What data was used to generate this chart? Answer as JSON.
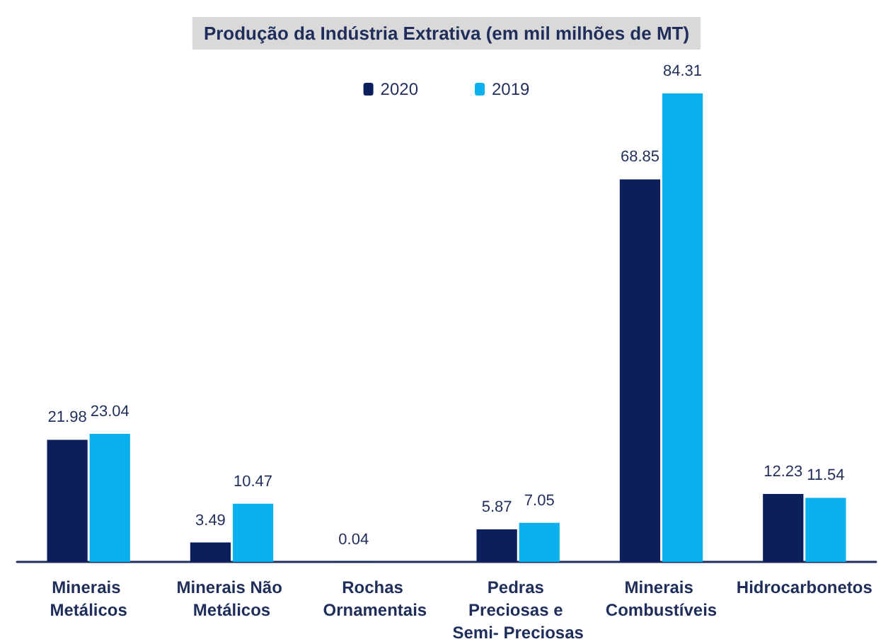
{
  "chart_data": {
    "type": "bar",
    "title": "Produção da Indústria Extrativa (em mil milhões de MT)",
    "categories": [
      "Minerais Metálicos",
      "Minerais Não Metálicos",
      "Rochas Ornamentais",
      "Pedras Preciosas e Semi- Preciosas",
      "Minerais Combustíveis",
      "Hidrocarbonetos"
    ],
    "series": [
      {
        "name": "2020",
        "color": "#0b1f5c",
        "values": [
          21.98,
          3.49,
          0.04,
          5.87,
          68.85,
          12.23
        ]
      },
      {
        "name": "2019",
        "color": "#0ab0ee",
        "values": [
          23.04,
          10.47,
          null,
          7.05,
          84.31,
          11.54
        ]
      }
    ],
    "data_labels": true,
    "legend": "top",
    "grid": false
  }
}
